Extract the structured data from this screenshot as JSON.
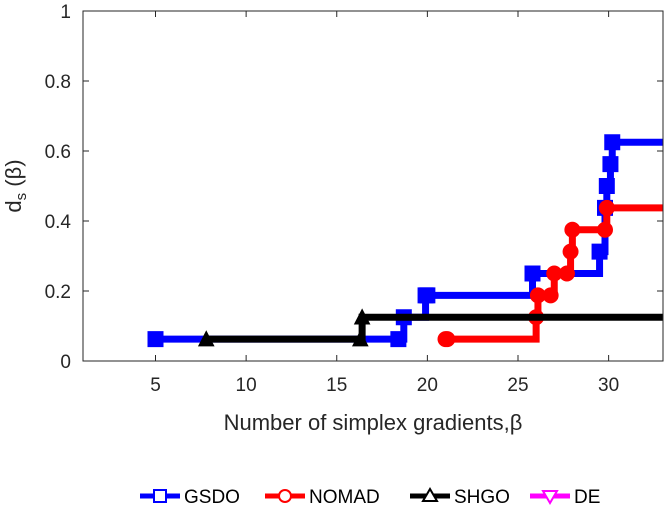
{
  "chart_data": {
    "type": "line",
    "title": "",
    "xlabel": "Number of simplex gradients,β",
    "ylabel_main": "d",
    "ylabel_sub": "s",
    "ylabel_suffix": " (β)",
    "xlim": [
      1,
      33
    ],
    "ylim": [
      0,
      1
    ],
    "xticks": [
      5,
      10,
      15,
      20,
      25,
      30
    ],
    "yticks": [
      0,
      0.2,
      0.4,
      0.6,
      0.8,
      1
    ],
    "ytick_labels": [
      "0",
      "0.2",
      "0.4",
      "0.6",
      "0.8",
      "1"
    ],
    "grid": false,
    "legend_position": "bottom",
    "step": true,
    "series": [
      {
        "name": "GSDO",
        "color": "#0000ff",
        "marker": "square",
        "x": [
          5,
          18.4,
          18.7,
          19.9,
          20,
          25.8,
          29.5,
          29.8,
          29.9,
          30.1,
          30.2,
          33
        ],
        "y": [
          0.0625,
          0.0625,
          0.125,
          0.1875,
          0.1875,
          0.25,
          0.3125,
          0.4375,
          0.5,
          0.5625,
          0.625,
          0.625
        ]
      },
      {
        "name": "NOMAD",
        "color": "#ff0000",
        "marker": "circle",
        "x": [
          21,
          21.1,
          26,
          26.1,
          26.8,
          27,
          27.7,
          27.9,
          28,
          29.8,
          29.9,
          33
        ],
        "y": [
          0.0625,
          0.0625,
          0.125,
          0.1875,
          0.1875,
          0.25,
          0.25,
          0.3125,
          0.375,
          0.375,
          0.4375,
          0.4375
        ]
      },
      {
        "name": "SHGO",
        "color": "#000000",
        "marker": "triangle",
        "x": [
          7.8,
          16.3,
          16.4,
          33
        ],
        "y": [
          0.0625,
          0.0625,
          0.125,
          0.125
        ]
      },
      {
        "name": "DE",
        "color": "#ff00ff",
        "marker": "triangle-down",
        "x": [],
        "y": []
      }
    ]
  }
}
